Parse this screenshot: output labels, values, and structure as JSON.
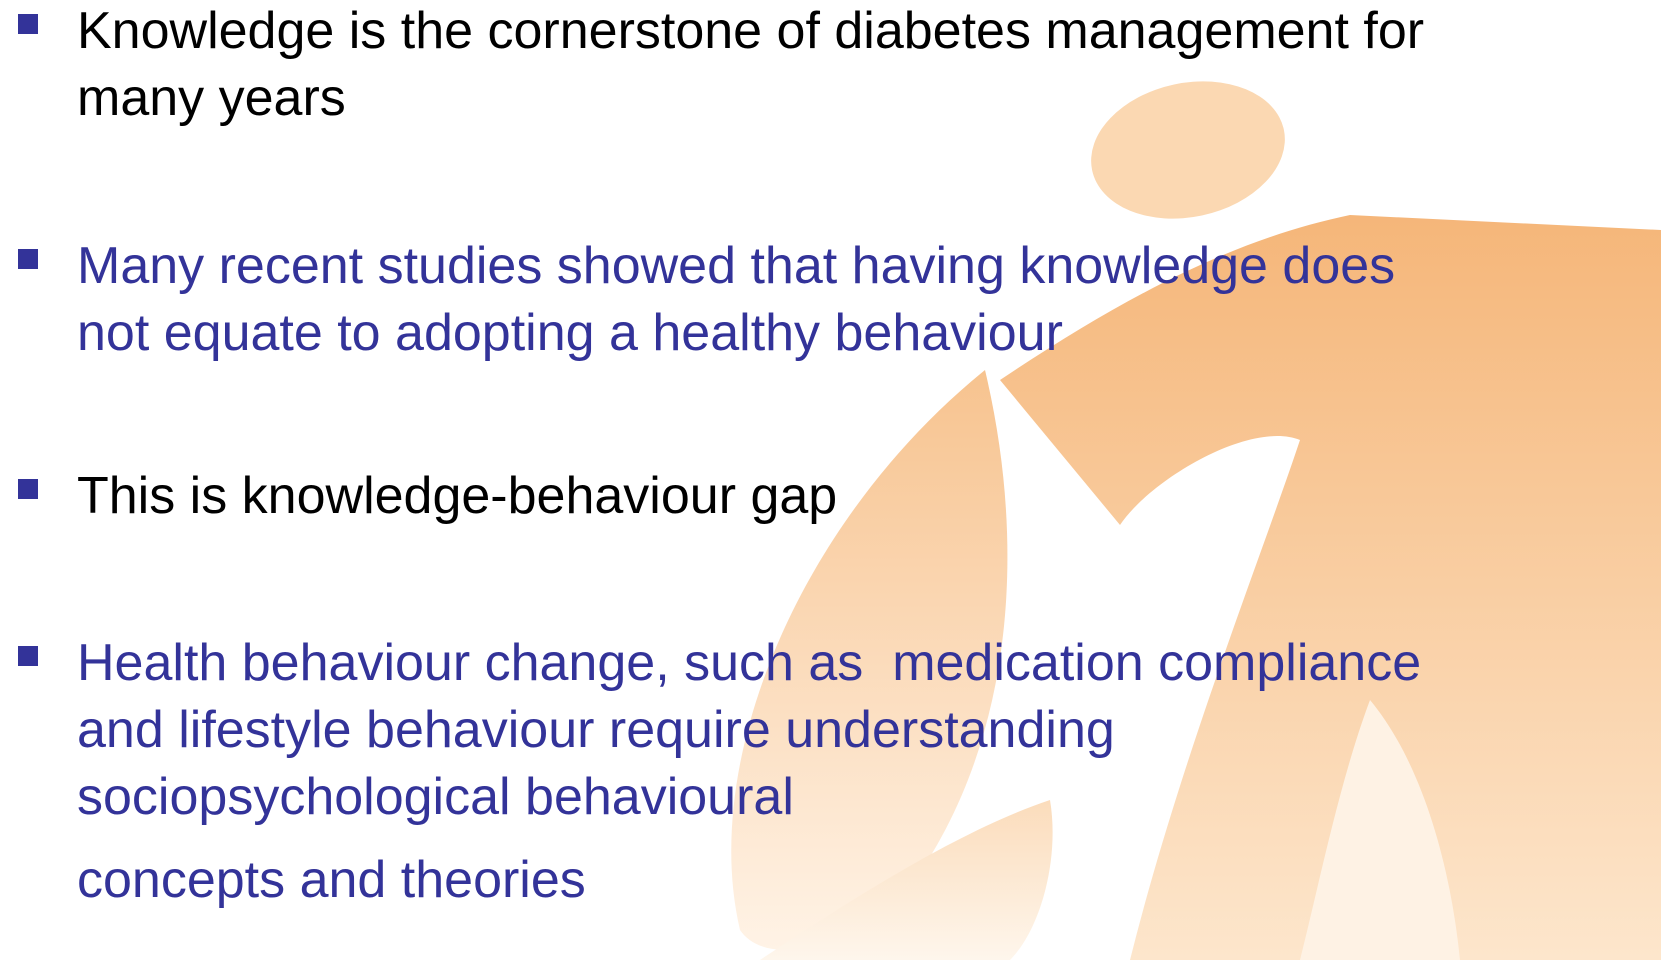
{
  "slide": {
    "bullets": [
      {
        "color": "#000000",
        "lines": [
          "Knowledge is the cornerstone of diabetes management for",
          "many years"
        ]
      },
      {
        "color": "#333399",
        "lines": [
          "Many recent studies showed that having knowledge does",
          "not equate to adopting a healthy behaviour"
        ]
      },
      {
        "color": "#000000",
        "lines": [
          "This is knowledge-behaviour gap"
        ]
      },
      {
        "color": "#333399",
        "lines": [
          "Health behaviour change, such as  medication compliance",
          "and lifestyle behaviour require understanding",
          "sociopsychological behavioural"
        ]
      }
    ],
    "continuation": {
      "color": "#333399",
      "text": "concepts and theories"
    }
  }
}
